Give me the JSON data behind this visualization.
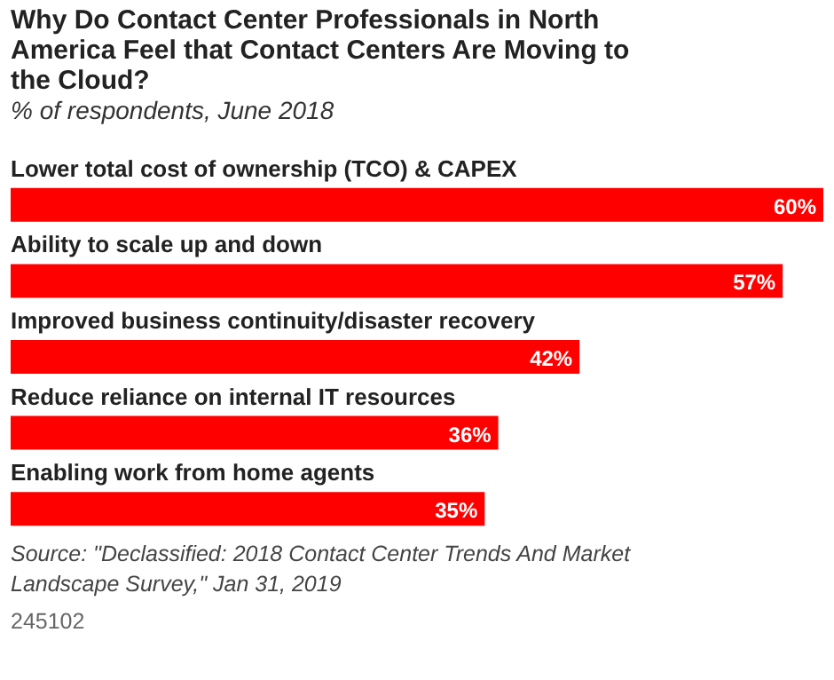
{
  "chart_data": {
    "type": "bar",
    "orientation": "horizontal",
    "title": "Why Do Contact Center Professionals in North America Feel that Contact Centers Are Moving to the Cloud?",
    "subtitle": "% of respondents, June 2018",
    "categories": [
      "Lower total cost of ownership (TCO) & CAPEX",
      "Ability to scale up and down",
      "Improved business continuity/disaster recovery",
      "Reduce reliance on internal IT resources",
      "Enabling work from home agents"
    ],
    "values": [
      60,
      57,
      42,
      36,
      35
    ],
    "color": "#ff0000",
    "value_labels": [
      "60%",
      "57%",
      "42%",
      "36%",
      "35%"
    ],
    "annotations": [
      "Source: \"Declassified: 2018 Contact Center Trends And Market Landscape Survey,\" Jan 31, 2019",
      "245102"
    ]
  }
}
